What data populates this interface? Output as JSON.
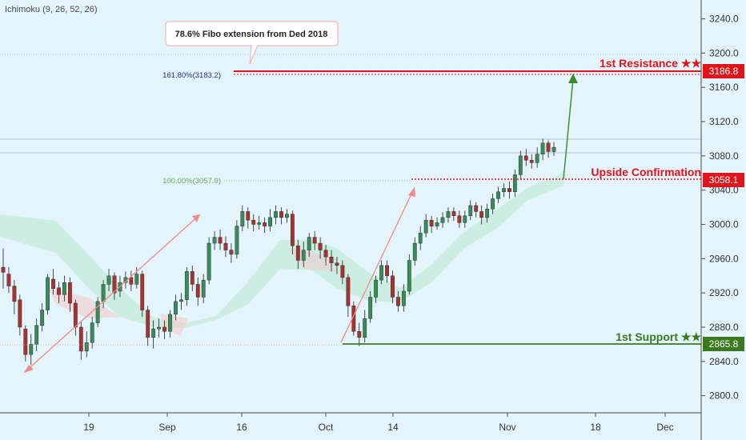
{
  "indicator": "Ichimoku (9, 26, 52, 26)",
  "colors": {
    "background": "#e3f4fb",
    "up": "#3a8a5a",
    "down": "#a83232",
    "cloud_bull": "#b9e8cc",
    "cloud_bear": "#f4c9c9",
    "resistance": "#e0141a",
    "support": "#3a7a1e",
    "fib_extension": "#2a2a90",
    "fib_100": "#6aa84f",
    "arrow_pink": "#f08a8a",
    "arrow_green": "#3a8a2a"
  },
  "chart_data": {
    "type": "candlestick",
    "indicator": "Ichimoku (9, 26, 52, 26)",
    "x_ticks": [
      "19",
      "Sep",
      "16",
      "Oct",
      "14",
      "Nov",
      "18",
      "Dec"
    ],
    "y_ticks": [
      "3240.0",
      "3200.0",
      "3160.0",
      "3120.0",
      "3080.0",
      "3040.0",
      "3000.0",
      "2960.0",
      "2920.0",
      "2880.0",
      "2840.0",
      "2800.0"
    ],
    "ylim": [
      2780,
      3262
    ],
    "levels": {
      "resistance": {
        "label": "1st Resistance ★★",
        "value": "3186.8"
      },
      "confirmation": {
        "label": "Upside Confirmation",
        "value": "3058.1"
      },
      "support": {
        "label": "1st Support ★★",
        "value": "2865.8"
      }
    },
    "fib_labels": {
      "extension": "161.80%(3183.2)",
      "base": "100.00%(3057.9)"
    },
    "callout": "78.6% Fibo extension from Ded 2018",
    "candles": [
      [
        2950,
        2944,
        2972,
        2925
      ],
      [
        2942,
        2928,
        2950,
        2920
      ],
      [
        2928,
        2910,
        2935,
        2895
      ],
      [
        2912,
        2880,
        2918,
        2870
      ],
      [
        2878,
        2848,
        2882,
        2840
      ],
      [
        2848,
        2860,
        2872,
        2836
      ],
      [
        2860,
        2882,
        2890,
        2852
      ],
      [
        2882,
        2900,
        2908,
        2875
      ],
      [
        2900,
        2938,
        2942,
        2895
      ],
      [
        2936,
        2925,
        2948,
        2918
      ],
      [
        2926,
        2918,
        2933,
        2908
      ],
      [
        2918,
        2932,
        2940,
        2910
      ],
      [
        2932,
        2908,
        2938,
        2898
      ],
      [
        2908,
        2880,
        2912,
        2870
      ],
      [
        2880,
        2852,
        2886,
        2842
      ],
      [
        2852,
        2862,
        2875,
        2845
      ],
      [
        2862,
        2885,
        2892,
        2855
      ],
      [
        2885,
        2910,
        2915,
        2880
      ],
      [
        2910,
        2930,
        2935,
        2902
      ],
      [
        2930,
        2940,
        2948,
        2922
      ],
      [
        2940,
        2920,
        2944,
        2912
      ],
      [
        2922,
        2932,
        2940,
        2915
      ],
      [
        2932,
        2938,
        2945,
        2925
      ],
      [
        2938,
        2930,
        2946,
        2922
      ],
      [
        2930,
        2942,
        2950,
        2925
      ],
      [
        2942,
        2900,
        2946,
        2892
      ],
      [
        2900,
        2868,
        2905,
        2858
      ],
      [
        2868,
        2878,
        2888,
        2855
      ],
      [
        2878,
        2880,
        2890,
        2868
      ],
      [
        2880,
        2875,
        2888,
        2866
      ],
      [
        2875,
        2895,
        2900,
        2868
      ],
      [
        2895,
        2910,
        2918,
        2888
      ],
      [
        2910,
        2912,
        2920,
        2900
      ],
      [
        2912,
        2945,
        2950,
        2905
      ],
      [
        2945,
        2930,
        2952,
        2922
      ],
      [
        2930,
        2915,
        2938,
        2905
      ],
      [
        2915,
        2935,
        2942,
        2908
      ],
      [
        2935,
        2978,
        2985,
        2930
      ],
      [
        2978,
        2985,
        2992,
        2970
      ],
      [
        2985,
        2978,
        2994,
        2970
      ],
      [
        2978,
        2970,
        2986,
        2962
      ],
      [
        2970,
        2965,
        2978,
        2955
      ],
      [
        2965,
        2998,
        3005,
        2960
      ],
      [
        2998,
        3015,
        3022,
        2992
      ],
      [
        3015,
        3005,
        3020,
        2995
      ],
      [
        3005,
        3000,
        3012,
        2992
      ],
      [
        3000,
        3002,
        3010,
        2994
      ],
      [
        3002,
        2998,
        3008,
        2990
      ],
      [
        2998,
        3008,
        3018,
        2992
      ],
      [
        3008,
        3015,
        3022,
        3000
      ],
      [
        3015,
        3008,
        3020,
        3000
      ],
      [
        3008,
        3012,
        3018,
        3002
      ],
      [
        3012,
        2975,
        3016,
        2965
      ],
      [
        2975,
        2958,
        2982,
        2948
      ],
      [
        2958,
        2970,
        2980,
        2950
      ],
      [
        2970,
        2985,
        2990,
        2962
      ],
      [
        2985,
        2978,
        2992,
        2970
      ],
      [
        2978,
        2970,
        2985,
        2960
      ],
      [
        2970,
        2962,
        2976,
        2952
      ],
      [
        2962,
        2955,
        2970,
        2945
      ],
      [
        2955,
        2952,
        2962,
        2942
      ],
      [
        2952,
        2938,
        2958,
        2930
      ],
      [
        2938,
        2905,
        2942,
        2892
      ],
      [
        2905,
        2875,
        2910,
        2870
      ],
      [
        2875,
        2868,
        2885,
        2858
      ],
      [
        2868,
        2890,
        2900,
        2862
      ],
      [
        2890,
        2915,
        2922,
        2885
      ],
      [
        2915,
        2935,
        2940,
        2908
      ],
      [
        2935,
        2952,
        2958,
        2930
      ],
      [
        2952,
        2940,
        2958,
        2932
      ],
      [
        2940,
        2915,
        2946,
        2908
      ],
      [
        2915,
        2905,
        2922,
        2898
      ],
      [
        2905,
        2922,
        2930,
        2898
      ],
      [
        2922,
        2958,
        2965,
        2918
      ],
      [
        2958,
        2978,
        2985,
        2952
      ],
      [
        2978,
        2990,
        2998,
        2970
      ],
      [
        2990,
        3005,
        3012,
        2985
      ],
      [
        3005,
        2998,
        3010,
        2990
      ],
      [
        2998,
        3002,
        3008,
        2994
      ],
      [
        3002,
        3008,
        3014,
        2996
      ],
      [
        3008,
        3015,
        3020,
        3002
      ],
      [
        3015,
        3010,
        3020,
        3004
      ],
      [
        3010,
        3002,
        3016,
        2996
      ],
      [
        3002,
        3010,
        3016,
        2996
      ],
      [
        3010,
        3022,
        3028,
        3005
      ],
      [
        3022,
        3015,
        3026,
        3008
      ],
      [
        3015,
        3008,
        3022,
        3000
      ],
      [
        3008,
        3018,
        3024,
        3002
      ],
      [
        3018,
        3030,
        3036,
        3012
      ],
      [
        3030,
        3038,
        3044,
        3025
      ],
      [
        3038,
        3042,
        3048,
        3032
      ],
      [
        3042,
        3038,
        3050,
        3030
      ],
      [
        3038,
        3058,
        3064,
        3032
      ],
      [
        3058,
        3080,
        3086,
        3052
      ],
      [
        3080,
        3075,
        3088,
        3068
      ],
      [
        3075,
        3072,
        3082,
        3065
      ],
      [
        3072,
        3082,
        3090,
        3066
      ],
      [
        3082,
        3095,
        3100,
        3075
      ],
      [
        3095,
        3085,
        3098,
        3078
      ],
      [
        3085,
        3090,
        3096,
        3080
      ]
    ]
  }
}
